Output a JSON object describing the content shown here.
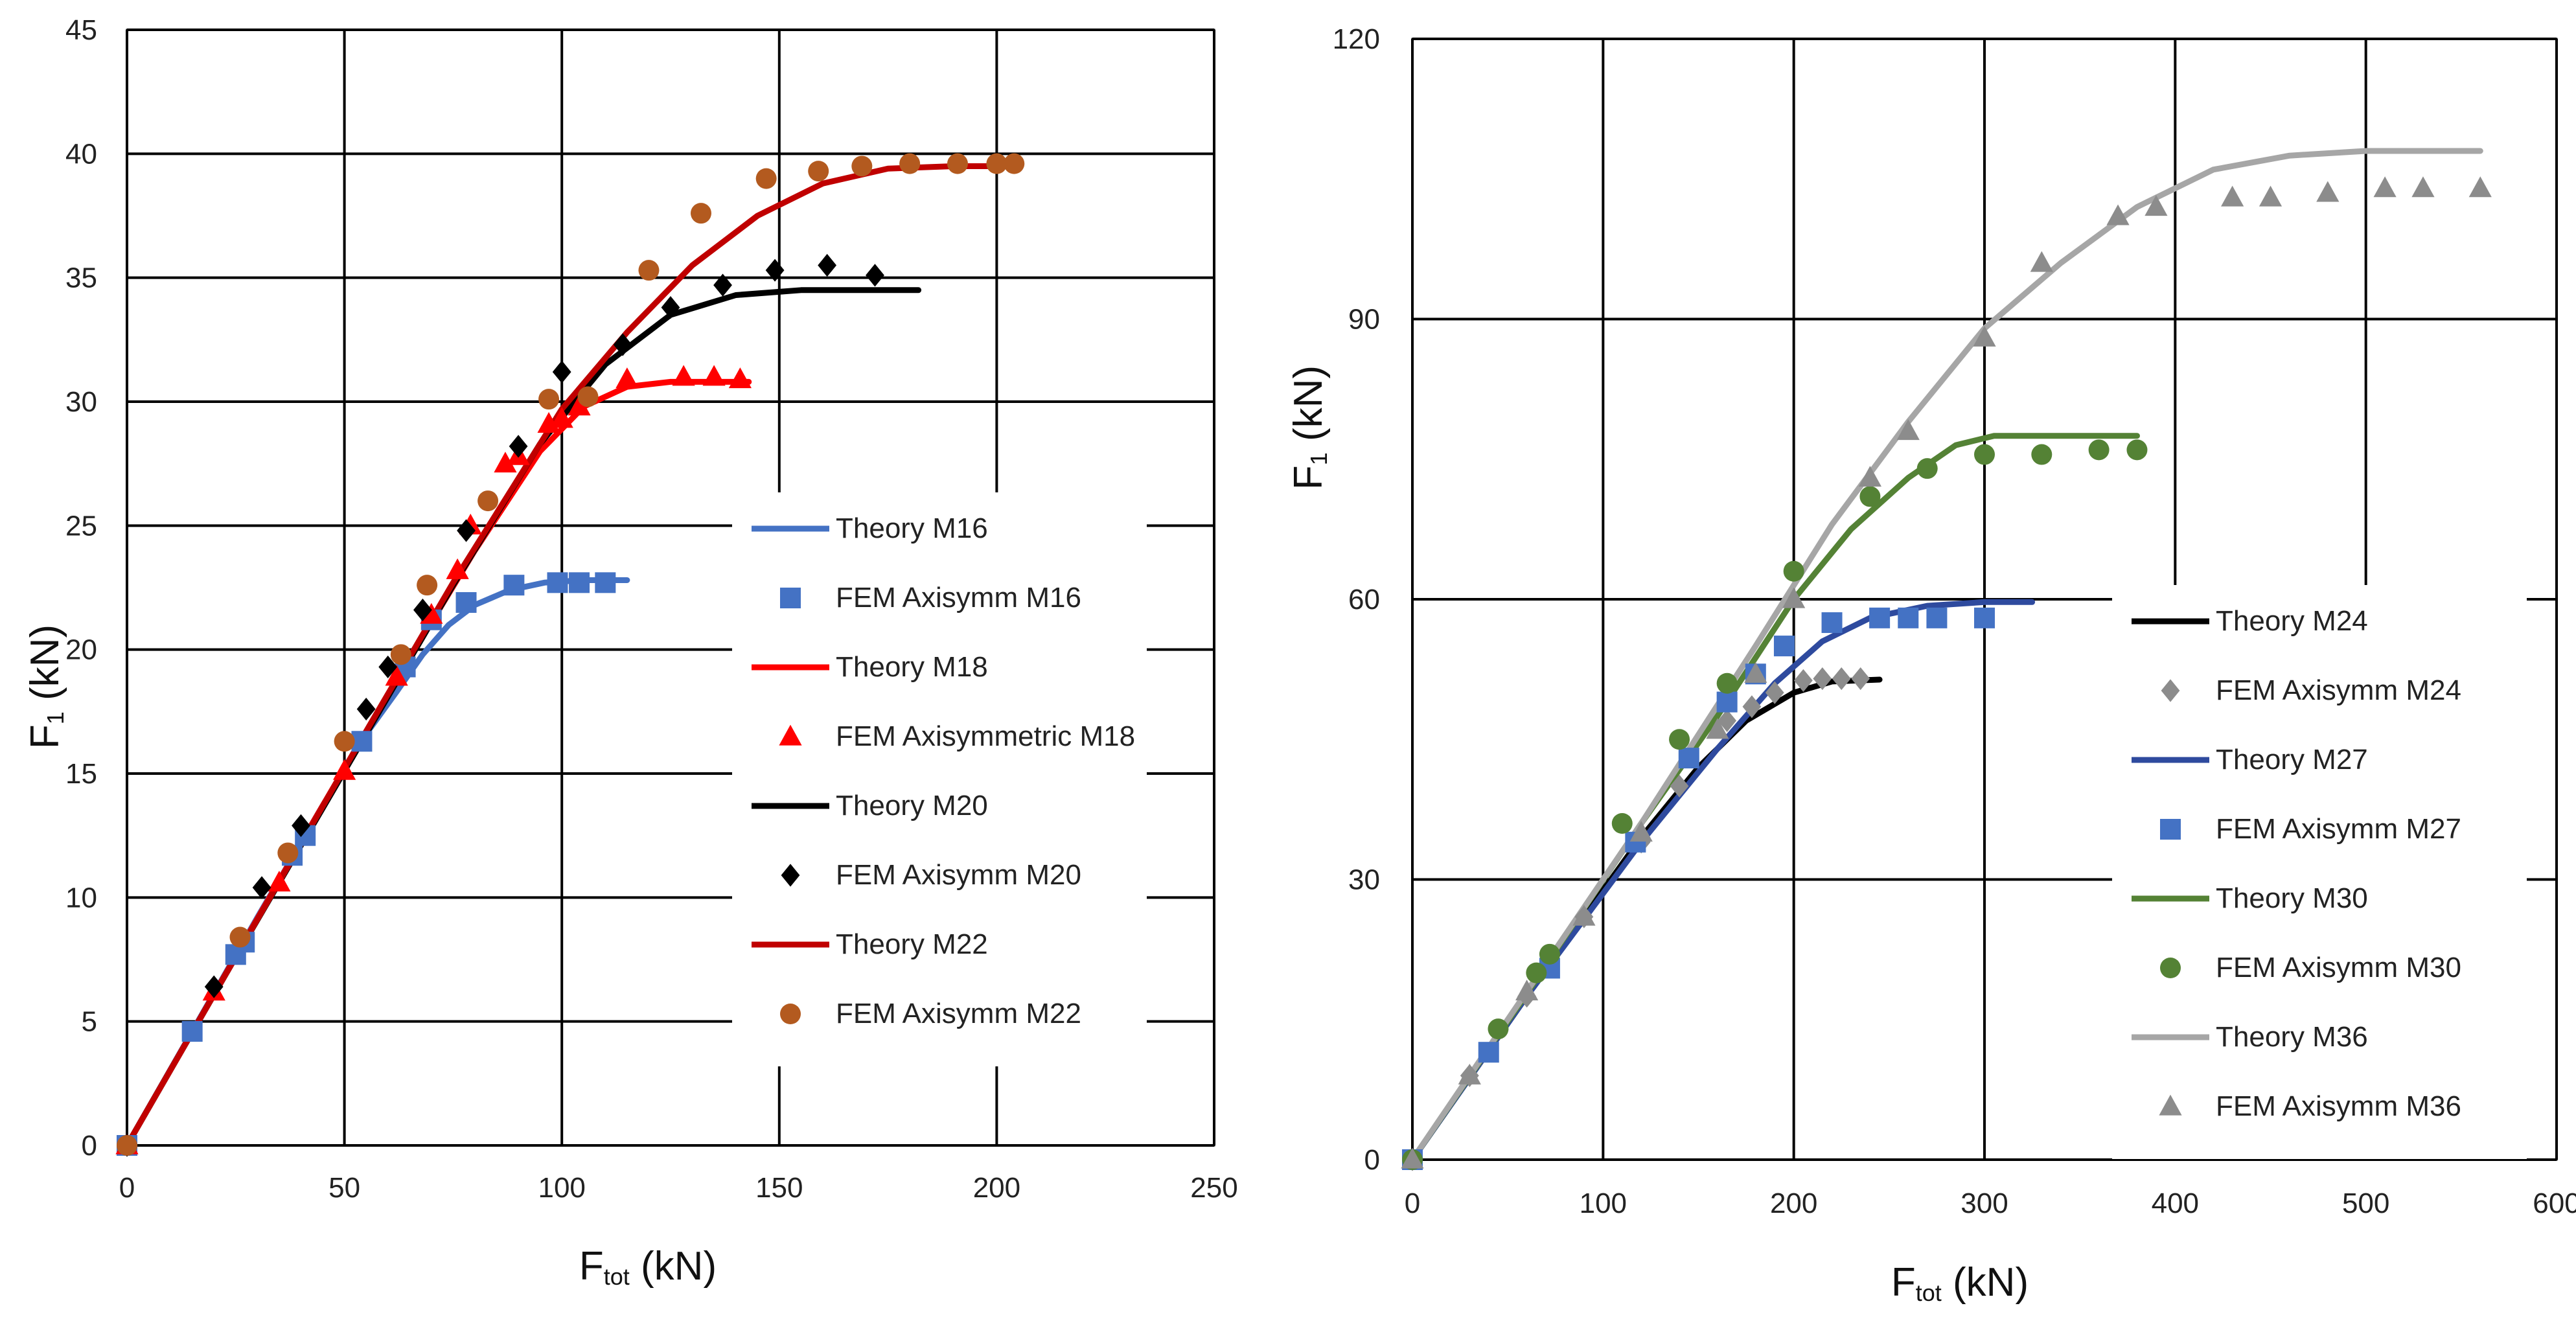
{
  "chart_data": [
    {
      "type": "scatter",
      "title": "",
      "xlabel": "F",
      "xlabel_sub": "tot",
      "xlabel_unit": " (kN)",
      "ylabel": "F",
      "ylabel_sub": "1",
      "ylabel_unit": " (kN)",
      "xlim": [
        0,
        250
      ],
      "ylim": [
        0,
        45
      ],
      "xticks": [
        "0",
        "50",
        "100",
        "150",
        "200",
        "250"
      ],
      "yticks": [
        "0",
        "5",
        "10",
        "15",
        "20",
        "25",
        "30",
        "35",
        "40",
        "45"
      ],
      "grid": true,
      "legend_position": "lower-right",
      "series": [
        {
          "name": "Theory M16",
          "kind": "line",
          "color": "#4472c4",
          "points": [
            [
              0,
              0
            ],
            [
              15,
              4.6
            ],
            [
              30,
              9.2
            ],
            [
              45,
              13.7
            ],
            [
              55,
              16.6
            ],
            [
              62,
              18.3
            ],
            [
              68,
              19.8
            ],
            [
              74,
              21
            ],
            [
              80,
              21.8
            ],
            [
              88,
              22.4
            ],
            [
              96,
              22.7
            ],
            [
              105,
              22.8
            ],
            [
              115,
              22.8
            ]
          ]
        },
        {
          "name": "FEM Axisymm M16",
          "kind": "marker",
          "marker": "square",
          "color": "#4472c4",
          "points": [
            [
              0,
              0
            ],
            [
              15,
              4.6
            ],
            [
              25,
              7.7
            ],
            [
              27,
              8.2
            ],
            [
              38,
              11.7
            ],
            [
              41,
              12.5
            ],
            [
              54,
              16.3
            ],
            [
              64,
              19.3
            ],
            [
              70,
              21.2
            ],
            [
              78,
              21.9
            ],
            [
              89,
              22.6
            ],
            [
              99,
              22.7
            ],
            [
              104,
              22.7
            ],
            [
              110,
              22.7
            ]
          ]
        },
        {
          "name": "Theory M18",
          "kind": "line",
          "color": "#ff0000",
          "points": [
            [
              0,
              0
            ],
            [
              20,
              6.1
            ],
            [
              40,
              12.2
            ],
            [
              60,
              18.2
            ],
            [
              80,
              24
            ],
            [
              95,
              28
            ],
            [
              105,
              29.8
            ],
            [
              115,
              30.6
            ],
            [
              125,
              30.8
            ],
            [
              143,
              30.8
            ]
          ]
        },
        {
          "name": "FEM Axisymmetric M18",
          "kind": "marker",
          "marker": "triangle",
          "color": "#ff0000",
          "points": [
            [
              0,
              0
            ],
            [
              20,
              6.2
            ],
            [
              35,
              10.6
            ],
            [
              50,
              15.1
            ],
            [
              62,
              18.9
            ],
            [
              70,
              21.4
            ],
            [
              76,
              23.2
            ],
            [
              79,
              25
            ],
            [
              87,
              27.5
            ],
            [
              90,
              27.8
            ],
            [
              97,
              29.1
            ],
            [
              100,
              29.3
            ],
            [
              104,
              29.8
            ],
            [
              115,
              30.9
            ],
            [
              128,
              31
            ],
            [
              135,
              31
            ],
            [
              141,
              30.9
            ]
          ]
        },
        {
          "name": "Theory M20",
          "kind": "line",
          "color": "#000000",
          "points": [
            [
              0,
              0
            ],
            [
              25,
              7.6
            ],
            [
              50,
              15.1
            ],
            [
              75,
              22.6
            ],
            [
              95,
              28.3
            ],
            [
              110,
              31.5
            ],
            [
              125,
              33.5
            ],
            [
              140,
              34.3
            ],
            [
              155,
              34.5
            ],
            [
              182,
              34.5
            ]
          ]
        },
        {
          "name": "FEM Axisymm M20",
          "kind": "marker",
          "marker": "diamond",
          "color": "#000000",
          "points": [
            [
              0,
              0
            ],
            [
              20,
              6.4
            ],
            [
              31,
              10.4
            ],
            [
              40,
              12.9
            ],
            [
              55,
              17.6
            ],
            [
              60,
              19.3
            ],
            [
              68,
              21.6
            ],
            [
              78,
              24.8
            ],
            [
              90,
              28.2
            ],
            [
              100,
              31.2
            ],
            [
              114,
              32.3
            ],
            [
              125,
              33.8
            ],
            [
              137,
              34.7
            ],
            [
              149,
              35.3
            ],
            [
              161,
              35.5
            ],
            [
              172,
              35.1
            ]
          ]
        },
        {
          "name": "Theory M22",
          "kind": "line",
          "color": "#c00000",
          "points": [
            [
              0,
              0
            ],
            [
              25,
              7.6
            ],
            [
              50,
              15.2
            ],
            [
              75,
              22.7
            ],
            [
              100,
              29.7
            ],
            [
              115,
              32.8
            ],
            [
              130,
              35.5
            ],
            [
              145,
              37.5
            ],
            [
              160,
              38.8
            ],
            [
              175,
              39.4
            ],
            [
              190,
              39.5
            ],
            [
              205,
              39.5
            ]
          ]
        },
        {
          "name": "FEM Axisymm M22",
          "kind": "marker",
          "marker": "circle",
          "color": "#b35a1f",
          "points": [
            [
              0,
              0
            ],
            [
              26,
              8.4
            ],
            [
              37,
              11.8
            ],
            [
              50,
              16.3
            ],
            [
              63,
              19.8
            ],
            [
              69,
              22.6
            ],
            [
              83,
              26
            ],
            [
              97,
              30.1
            ],
            [
              106,
              30.2
            ],
            [
              120,
              35.3
            ],
            [
              132,
              37.6
            ],
            [
              147,
              39
            ],
            [
              159,
              39.3
            ],
            [
              169,
              39.5
            ],
            [
              180,
              39.6
            ],
            [
              191,
              39.6
            ],
            [
              200,
              39.6
            ],
            [
              204,
              39.6
            ]
          ]
        }
      ]
    },
    {
      "type": "scatter",
      "title": "",
      "xlabel": "F",
      "xlabel_sub": "tot",
      "xlabel_unit": " (kN)",
      "ylabel": "F",
      "ylabel_sub": "1",
      "ylabel_unit": " (kN)",
      "xlim": [
        0,
        600
      ],
      "ylim": [
        0,
        120
      ],
      "xticks": [
        "0",
        "100",
        "200",
        "300",
        "400",
        "500",
        "600"
      ],
      "yticks": [
        "0",
        "30",
        "60",
        "90",
        "120"
      ],
      "grid": true,
      "legend_position": "lower-right",
      "series": [
        {
          "name": "Theory M24",
          "kind": "line",
          "color": "#000000",
          "points": [
            [
              0,
              0
            ],
            [
              60,
              17.5
            ],
            [
              120,
              34.5
            ],
            [
              150,
              42
            ],
            [
              175,
              47
            ],
            [
              200,
              50
            ],
            [
              220,
              51.2
            ],
            [
              245,
              51.4
            ]
          ]
        },
        {
          "name": "FEM Axisymm M24",
          "kind": "marker",
          "marker": "diamond",
          "color": "#8c8c8c",
          "points": [
            [
              0,
              0
            ],
            [
              30,
              9
            ],
            [
              60,
              17.5
            ],
            [
              90,
              26
            ],
            [
              120,
              34
            ],
            [
              140,
              40
            ],
            [
              165,
              47
            ],
            [
              178,
              48.5
            ],
            [
              190,
              50
            ],
            [
              205,
              51.3
            ],
            [
              215,
              51.5
            ],
            [
              225,
              51.5
            ],
            [
              235,
              51.5
            ]
          ]
        },
        {
          "name": "Theory M27",
          "kind": "line",
          "color": "#2e4a9e",
          "points": [
            [
              0,
              0
            ],
            [
              60,
              17.5
            ],
            [
              120,
              34
            ],
            [
              160,
              44
            ],
            [
              190,
              51
            ],
            [
              215,
              55.5
            ],
            [
              240,
              58
            ],
            [
              270,
              59.3
            ],
            [
              300,
              59.7
            ],
            [
              325,
              59.7
            ]
          ]
        },
        {
          "name": "FEM Axisymm M27",
          "kind": "marker",
          "marker": "square",
          "color": "#4472c4",
          "points": [
            [
              0,
              0
            ],
            [
              40,
              11.5
            ],
            [
              72,
              20.5
            ],
            [
              117,
              34
            ],
            [
              145,
              43
            ],
            [
              165,
              49
            ],
            [
              180,
              52
            ],
            [
              195,
              55
            ],
            [
              220,
              57.5
            ],
            [
              245,
              58
            ],
            [
              260,
              58
            ],
            [
              275,
              58
            ],
            [
              300,
              58
            ]
          ]
        },
        {
          "name": "Theory M30",
          "kind": "line",
          "color": "#548235",
          "points": [
            [
              0,
              0
            ],
            [
              60,
              17.8
            ],
            [
              120,
              36
            ],
            [
              160,
              47.5
            ],
            [
              200,
              60
            ],
            [
              230,
              67.5
            ],
            [
              260,
              73
            ],
            [
              285,
              76.5
            ],
            [
              305,
              77.5
            ],
            [
              380,
              77.5
            ]
          ]
        },
        {
          "name": "FEM Axisymm M30",
          "kind": "marker",
          "marker": "circle",
          "color": "#548235",
          "points": [
            [
              0,
              0
            ],
            [
              45,
              14
            ],
            [
              65,
              20
            ],
            [
              72,
              22
            ],
            [
              110,
              36
            ],
            [
              140,
              45
            ],
            [
              165,
              51
            ],
            [
              200,
              63
            ],
            [
              240,
              71
            ],
            [
              270,
              74
            ],
            [
              300,
              75.5
            ],
            [
              330,
              75.5
            ],
            [
              360,
              76
            ],
            [
              380,
              76
            ]
          ]
        },
        {
          "name": "Theory M36",
          "kind": "line",
          "color": "#a6a6a6",
          "points": [
            [
              0,
              0
            ],
            [
              60,
              18
            ],
            [
              120,
              36
            ],
            [
              180,
              55
            ],
            [
              220,
              68
            ],
            [
              260,
              79
            ],
            [
              300,
              89
            ],
            [
              340,
              96
            ],
            [
              380,
              102
            ],
            [
              420,
              106
            ],
            [
              460,
              107.5
            ],
            [
              500,
              108
            ],
            [
              560,
              108
            ]
          ]
        },
        {
          "name": "FEM Axisymm M36",
          "kind": "marker",
          "marker": "triangle",
          "color": "#8c8c8c",
          "points": [
            [
              0,
              0
            ],
            [
              30,
              9
            ],
            [
              60,
              18
            ],
            [
              90,
              26
            ],
            [
              120,
              35
            ],
            [
              160,
              46
            ],
            [
              180,
              52
            ],
            [
              200,
              60
            ],
            [
              240,
              73
            ],
            [
              260,
              78
            ],
            [
              300,
              88
            ],
            [
              330,
              96
            ],
            [
              370,
              101
            ],
            [
              390,
              102
            ],
            [
              430,
              103
            ],
            [
              450,
              103
            ],
            [
              480,
              103.5
            ],
            [
              510,
              104
            ],
            [
              530,
              104
            ],
            [
              560,
              104
            ]
          ]
        }
      ]
    }
  ]
}
